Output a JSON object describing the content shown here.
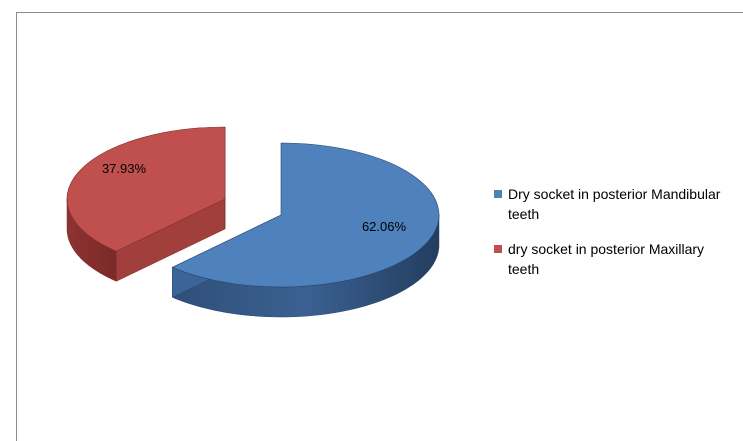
{
  "chart_data": {
    "type": "pie",
    "style": "3d exploded",
    "slices": [
      {
        "label": "Dry socket in posterior Mandibular teeth",
        "value": 62.06,
        "value_label": "62.06%",
        "color": "#4F81BD"
      },
      {
        "label": "dry socket in posterior Maxillary teeth",
        "value": 37.93,
        "value_label": "37.93%",
        "color": "#C0504D"
      }
    ],
    "legend_position": "right",
    "title": ""
  }
}
